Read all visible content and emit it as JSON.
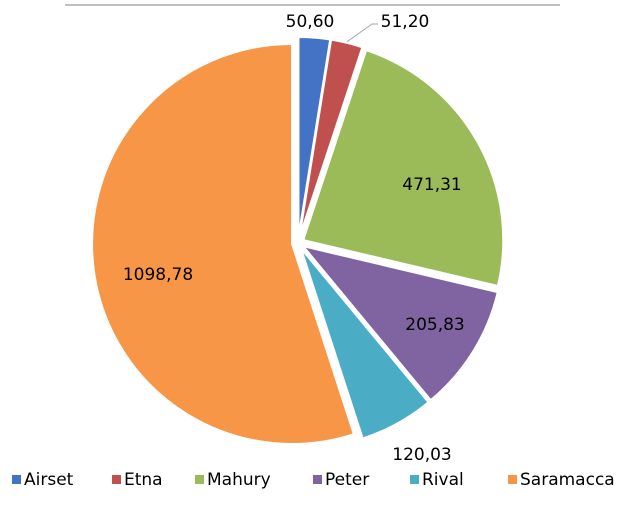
{
  "chart_data": {
    "type": "pie",
    "categories": [
      "Airset",
      "Etna",
      "Mahury",
      "Peter",
      "Rival",
      "Saramacca"
    ],
    "values": [
      50.6,
      51.2,
      471.31,
      205.83,
      120.03,
      1098.78
    ],
    "value_labels": [
      "50,60",
      "51,20",
      "471,31",
      "205,83",
      "120,03",
      "1098,78"
    ],
    "colors": [
      "#4472c4",
      "#c0504d",
      "#9bbb59",
      "#8064a2",
      "#4bacc6",
      "#f79646"
    ],
    "legend": "bottom"
  }
}
